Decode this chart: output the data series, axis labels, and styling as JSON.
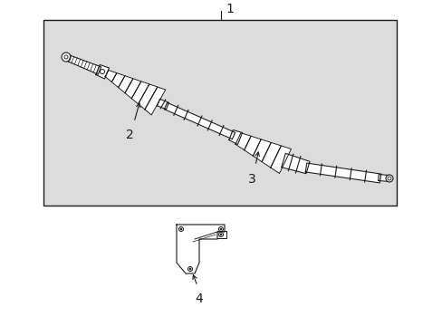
{
  "background_color": "#ffffff",
  "box_bg": "#dcdcdc",
  "box_border": "#000000",
  "line_color": "#1a1a1a",
  "label_1": "1",
  "label_2": "2",
  "label_3": "3",
  "label_4": "4",
  "label_fontsize": 10,
  "fig_width": 4.89,
  "fig_height": 3.6,
  "dpi": 100
}
